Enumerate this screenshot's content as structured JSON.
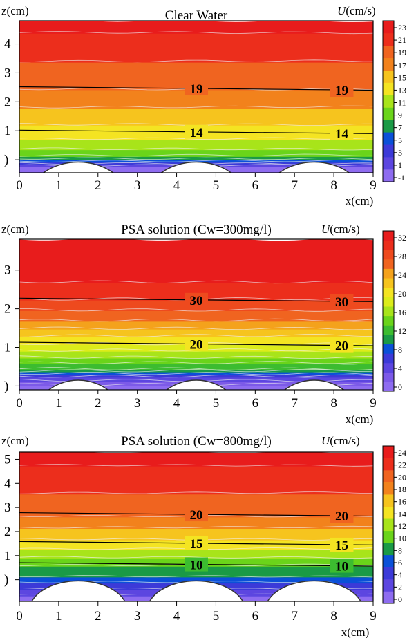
{
  "colors": {
    "scale": [
      "#8e6cf0",
      "#7c5ae8",
      "#5c46e0",
      "#3c3ad8",
      "#1a2ec8",
      "#0a50d8",
      "#1a9a46",
      "#3cbc30",
      "#6ad41a",
      "#a8e41a",
      "#dcec1a",
      "#f4e422",
      "#f6c41e",
      "#f4a21c",
      "#f2821c",
      "#f06420",
      "#ee4a1e",
      "#ec2e1c",
      "#e81c1c"
    ],
    "contour_line": "#000000",
    "minor_line": "#f0f0f0",
    "bed": "#ffffff"
  },
  "chart_data": [
    {
      "type": "heatmap",
      "title": "Clear Water",
      "ylabel": "z(cm)",
      "xlabel": "x(cm)",
      "unit_label": "U(cm/s)",
      "xlim": [
        0,
        9
      ],
      "ylim": [
        -0.45,
        4.8
      ],
      "x_ticks": [
        "0",
        "1",
        "2",
        "3",
        "4",
        "5",
        "6",
        "7",
        "8",
        "9"
      ],
      "y_ticks": [
        {
          "v": 0,
          "label": ")"
        },
        {
          "v": 1,
          "label": "1"
        },
        {
          "v": 2,
          "label": "2"
        },
        {
          "v": 3,
          "label": "3"
        },
        {
          "v": 4,
          "label": "4"
        }
      ],
      "colorbar_ticks": [
        "23",
        "21",
        "19",
        "17",
        "15",
        "13",
        "11",
        "9",
        "7",
        "5",
        "3",
        "1",
        "-1"
      ],
      "colorbar_range": [
        -1,
        24
      ],
      "levels": [
        -1,
        1,
        3,
        5,
        7,
        9,
        11,
        13,
        15,
        17,
        19,
        21,
        23,
        24
      ],
      "profile": [
        {
          "z": -0.45,
          "u": -1
        },
        {
          "z": -0.2,
          "u": 1
        },
        {
          "z": -0.05,
          "u": 5
        },
        {
          "z": 0.15,
          "u": 9
        },
        {
          "z": 0.5,
          "u": 12
        },
        {
          "z": 0.95,
          "u": 14
        },
        {
          "z": 1.5,
          "u": 16
        },
        {
          "z": 2.45,
          "u": 19
        },
        {
          "z": 3.4,
          "u": 21
        },
        {
          "z": 4.2,
          "u": 22.5
        },
        {
          "z": 4.8,
          "u": 24
        }
      ],
      "labeled_contours": [
        {
          "value": 19,
          "z": 2.45,
          "label": "19",
          "label_x": [
            4.5,
            8.2
          ]
        },
        {
          "value": 14,
          "z": 0.95,
          "label": "14",
          "label_x": [
            4.5,
            8.2
          ]
        }
      ],
      "bed_crests": [
        1.5,
        4.5,
        7.5
      ],
      "bed_radius": 1.25,
      "bed_top": -0.08
    },
    {
      "type": "heatmap",
      "title": "PSA solution (Cw=300mg/l)",
      "ylabel": "z(cm)",
      "xlabel": "x(cm)",
      "unit_label": "U(cm/s)",
      "xlim": [
        0,
        9
      ],
      "ylim": [
        -0.1,
        3.8
      ],
      "x_ticks": [
        "0",
        "1",
        "2",
        "3",
        "4",
        "5",
        "6",
        "7",
        "8",
        "9"
      ],
      "y_ticks": [
        {
          "v": 0,
          "label": ")"
        },
        {
          "v": 1,
          "label": "1"
        },
        {
          "v": 2,
          "label": "2"
        },
        {
          "v": 3,
          "label": "3"
        }
      ],
      "colorbar_ticks": [
        "32",
        "28",
        "24",
        "20",
        "16",
        "12",
        "8",
        "4",
        "0"
      ],
      "colorbar_range": [
        0,
        34
      ],
      "levels": [
        0,
        2,
        4,
        6,
        8,
        10,
        12,
        14,
        16,
        18,
        20,
        22,
        24,
        26,
        28,
        30,
        32,
        34
      ],
      "profile": [
        {
          "z": -0.1,
          "u": 0
        },
        {
          "z": 0.1,
          "u": 3
        },
        {
          "z": 0.3,
          "u": 7
        },
        {
          "z": 0.45,
          "u": 12
        },
        {
          "z": 0.75,
          "u": 16
        },
        {
          "z": 1.1,
          "u": 20
        },
        {
          "z": 1.7,
          "u": 26
        },
        {
          "z": 2.25,
          "u": 30
        },
        {
          "z": 2.7,
          "u": 32
        },
        {
          "z": 3.3,
          "u": 33
        },
        {
          "z": 3.8,
          "u": 34
        }
      ],
      "labeled_contours": [
        {
          "value": 30,
          "z": 2.22,
          "label": "30",
          "label_x": [
            4.5,
            8.2
          ]
        },
        {
          "value": 20,
          "z": 1.08,
          "label": "20",
          "label_x": [
            4.5,
            8.2
          ]
        }
      ],
      "bed_crests": [
        1.5,
        4.5,
        7.5
      ],
      "bed_radius": 1.25,
      "bed_top": 0.15
    },
    {
      "type": "heatmap",
      "title": "PSA solution (Cw=800mg/l)",
      "ylabel": "z(cm)",
      "xlabel": "x(cm)",
      "unit_label": "U(cm/s)",
      "xlim": [
        0,
        9
      ],
      "ylim": [
        -0.9,
        5.3
      ],
      "x_ticks": [
        "0",
        "1",
        "2",
        "3",
        "4",
        "5",
        "6",
        "7",
        "8",
        "9"
      ],
      "y_ticks": [
        {
          "v": 0,
          "label": ")"
        },
        {
          "v": 1,
          "label": "1"
        },
        {
          "v": 2,
          "label": "2"
        },
        {
          "v": 3,
          "label": "3"
        },
        {
          "v": 4,
          "label": "4"
        },
        {
          "v": 5,
          "label": "5"
        }
      ],
      "colorbar_ticks": [
        "24",
        "22",
        "20",
        "18",
        "16",
        "14",
        "12",
        "10",
        "8",
        "6",
        "4",
        "2",
        "0"
      ],
      "colorbar_range": [
        0,
        25
      ],
      "levels": [
        0,
        2,
        4,
        6,
        8,
        10,
        12,
        14,
        16,
        18,
        20,
        22,
        24,
        25
      ],
      "profile": [
        {
          "z": -0.9,
          "u": 0
        },
        {
          "z": -0.5,
          "u": 3
        },
        {
          "z": -0.1,
          "u": 6
        },
        {
          "z": 0.15,
          "u": 8
        },
        {
          "z": 0.6,
          "u": 10
        },
        {
          "z": 1.45,
          "u": 15
        },
        {
          "z": 2.65,
          "u": 20
        },
        {
          "z": 3.6,
          "u": 22
        },
        {
          "z": 4.5,
          "u": 23.5
        },
        {
          "z": 5.3,
          "u": 25
        }
      ],
      "labeled_contours": [
        {
          "value": 20,
          "z": 2.7,
          "label": "20",
          "label_x": [
            4.5,
            8.2
          ]
        },
        {
          "value": 15,
          "z": 1.5,
          "label": "15",
          "label_x": [
            4.5,
            8.2
          ]
        },
        {
          "value": 10,
          "z": 0.62,
          "label": "10",
          "label_x": [
            4.5,
            8.2
          ]
        }
      ],
      "bed_crests": [
        1.5,
        4.5,
        7.5
      ],
      "bed_radius": 1.25,
      "bed_top": -0.05
    }
  ]
}
